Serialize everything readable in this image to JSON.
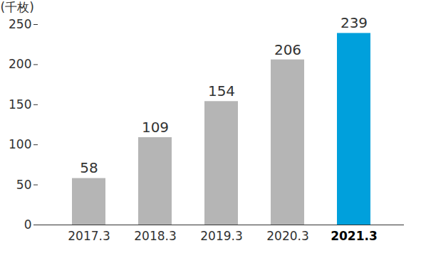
{
  "chart_data": {
    "type": "bar",
    "y_label": "(千枚)",
    "categories": [
      "2017.3",
      "2018.3",
      "2019.3",
      "2020.3",
      "2021.3"
    ],
    "values": [
      58,
      109,
      154,
      206,
      239
    ],
    "colors": [
      "#b5b5b5",
      "#b5b5b5",
      "#b5b5b5",
      "#b5b5b5",
      "#00a0dc"
    ],
    "ylim": [
      0,
      250
    ],
    "yticks": [
      0,
      50,
      100,
      150,
      200,
      250
    ],
    "grid": false,
    "data_labels": true
  }
}
